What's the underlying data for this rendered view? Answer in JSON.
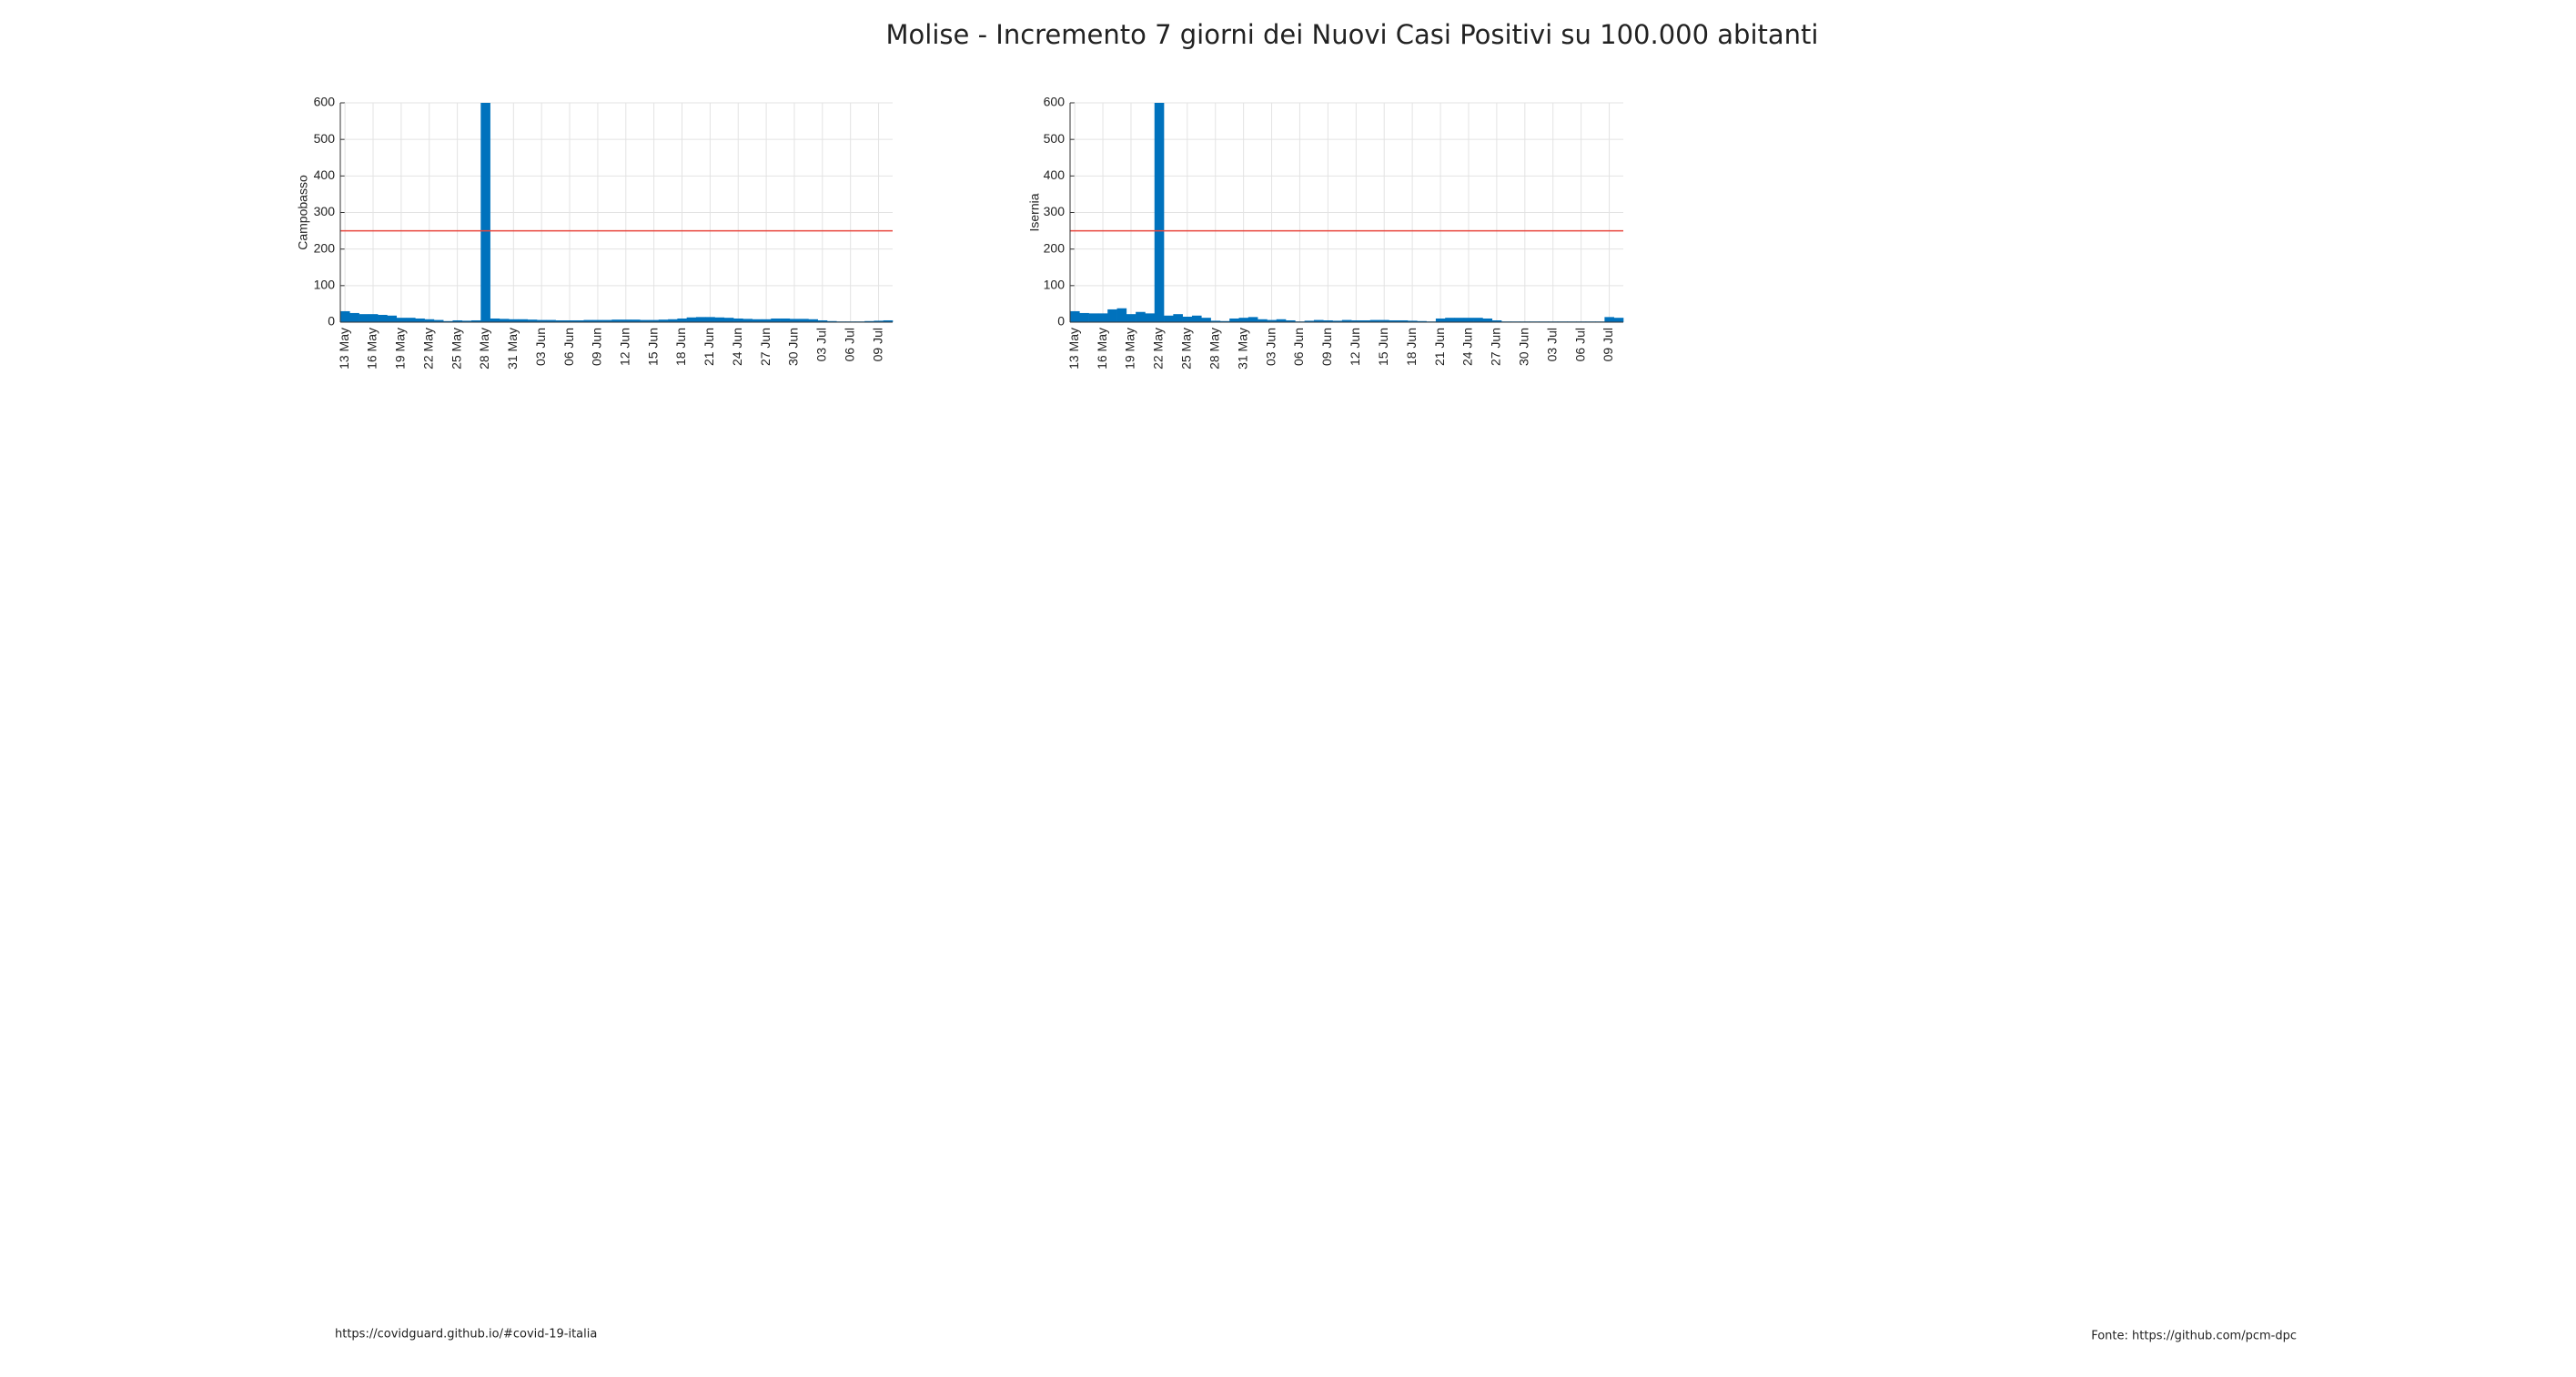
{
  "title": "Molise - Incremento 7 giorni dei Nuovi Casi Positivi su 100.000 abitanti",
  "footer": {
    "left": "https://covidguard.github.io/#covid-19-italia",
    "right": "Fonte: https://github.com/pcm-dpc"
  },
  "chart_data": [
    {
      "type": "bar",
      "ylabel": "Campobasso",
      "color": "#0072bd",
      "threshold": {
        "value": 250,
        "color": "#e8453c"
      },
      "grid": true,
      "ylim": [
        0,
        600
      ],
      "yticks": [
        0,
        100,
        200,
        300,
        400,
        500,
        600
      ],
      "categories": [
        "13 May",
        null,
        null,
        "16 May",
        null,
        null,
        "19 May",
        null,
        null,
        "22 May",
        null,
        null,
        "25 May",
        null,
        null,
        "28 May",
        null,
        null,
        "31 May",
        null,
        null,
        "03 Jun",
        null,
        null,
        "06 Jun",
        null,
        null,
        "09 Jun",
        null,
        null,
        "12 Jun",
        null,
        null,
        "15 Jun",
        null,
        null,
        "18 Jun",
        null,
        null,
        "21 Jun",
        null,
        null,
        "24 Jun",
        null,
        null,
        "27 Jun",
        null,
        null,
        "30 Jun",
        null,
        null,
        "03 Jul",
        null,
        null,
        "06 Jul",
        null,
        null,
        "09 Jul",
        null
      ],
      "values": [
        30,
        25,
        22,
        22,
        20,
        18,
        12,
        12,
        10,
        8,
        6,
        3,
        5,
        4,
        5,
        600,
        10,
        9,
        8,
        8,
        7,
        6,
        6,
        5,
        5,
        5,
        6,
        6,
        6,
        7,
        7,
        7,
        6,
        6,
        7,
        8,
        10,
        13,
        14,
        14,
        13,
        12,
        10,
        9,
        8,
        8,
        10,
        10,
        9,
        9,
        8,
        5,
        3,
        2,
        2,
        2,
        3,
        4,
        5
      ]
    },
    {
      "type": "bar",
      "ylabel": "Isernia",
      "color": "#0072bd",
      "threshold": {
        "value": 250,
        "color": "#e8453c"
      },
      "grid": true,
      "ylim": [
        0,
        600
      ],
      "yticks": [
        0,
        100,
        200,
        300,
        400,
        500,
        600
      ],
      "categories": [
        "13 May",
        null,
        null,
        "16 May",
        null,
        null,
        "19 May",
        null,
        null,
        "22 May",
        null,
        null,
        "25 May",
        null,
        null,
        "28 May",
        null,
        null,
        "31 May",
        null,
        null,
        "03 Jun",
        null,
        null,
        "06 Jun",
        null,
        null,
        "09 Jun",
        null,
        null,
        "12 Jun",
        null,
        null,
        "15 Jun",
        null,
        null,
        "18 Jun",
        null,
        null,
        "21 Jun",
        null,
        null,
        "24 Jun",
        null,
        null,
        "27 Jun",
        null,
        null,
        "30 Jun",
        null,
        null,
        "03 Jul",
        null,
        null,
        "06 Jul",
        null,
        null,
        "09 Jul",
        null
      ],
      "values": [
        30,
        25,
        24,
        24,
        35,
        38,
        22,
        28,
        24,
        600,
        18,
        22,
        15,
        18,
        12,
        4,
        3,
        10,
        12,
        14,
        8,
        6,
        8,
        5,
        2,
        4,
        6,
        5,
        4,
        6,
        5,
        5,
        6,
        6,
        5,
        5,
        4,
        3,
        2,
        10,
        12,
        12,
        12,
        12,
        10,
        5,
        2,
        2,
        2,
        2,
        2,
        2,
        2,
        2,
        2,
        2,
        2,
        14,
        12
      ]
    }
  ]
}
